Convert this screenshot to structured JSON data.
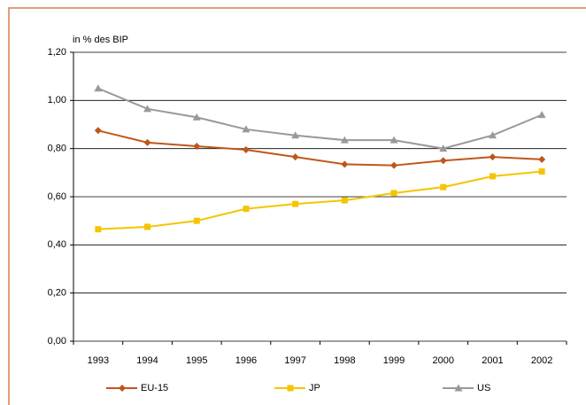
{
  "chart_data": {
    "type": "line",
    "y_label": "in % des BIP",
    "categories": [
      "1993",
      "1994",
      "1995",
      "1996",
      "1997",
      "1998",
      "1999",
      "2000",
      "2001",
      "2002"
    ],
    "series": [
      {
        "name": "EU-15",
        "color": "#c0561b",
        "marker": "diamond",
        "values": [
          0.875,
          0.825,
          0.81,
          0.795,
          0.765,
          0.735,
          0.73,
          0.75,
          0.765,
          0.755
        ]
      },
      {
        "name": "JP",
        "color": "#f5c400",
        "marker": "square",
        "values": [
          0.465,
          0.475,
          0.5,
          0.55,
          0.57,
          0.585,
          0.615,
          0.64,
          0.685,
          0.705
        ]
      },
      {
        "name": "US",
        "color": "#999999",
        "marker": "triangle",
        "values": [
          1.05,
          0.965,
          0.93,
          0.88,
          0.855,
          0.835,
          0.835,
          0.8,
          0.855,
          0.94
        ]
      }
    ],
    "ylim": [
      0,
      1.2
    ],
    "yticks": [
      {
        "value": 0,
        "label": "0,00"
      },
      {
        "value": 0.2,
        "label": "0,20"
      },
      {
        "value": 0.4,
        "label": "0,40"
      },
      {
        "value": 0.6,
        "label": "0,60"
      },
      {
        "value": 0.8,
        "label": "0,80"
      },
      {
        "value": 1.0,
        "label": "1,00"
      },
      {
        "value": 1.2,
        "label": "1,20"
      }
    ],
    "grid": true,
    "legend": "bottom"
  }
}
